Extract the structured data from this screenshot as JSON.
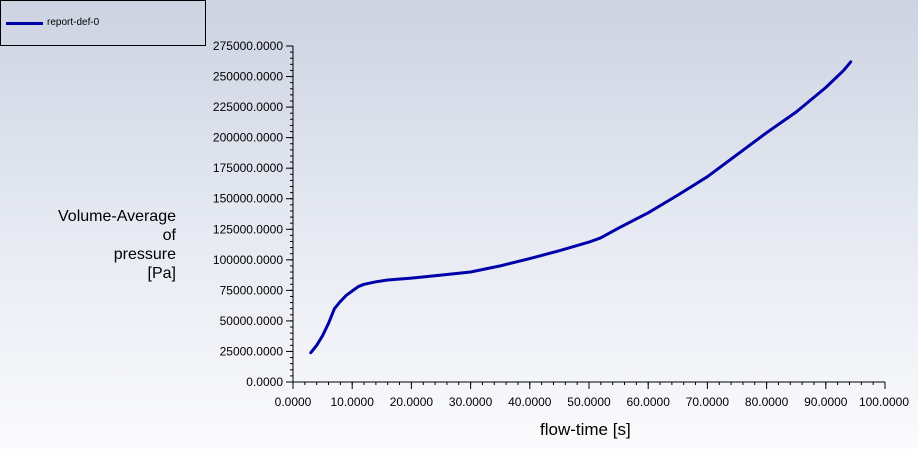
{
  "chart_data": {
    "type": "line",
    "xlabel": "flow-time [s]",
    "ylabel_lines": [
      "Volume-Average",
      "of",
      "pressure",
      "[Pa]"
    ],
    "xlim": [
      0,
      100
    ],
    "ylim": [
      0,
      275000
    ],
    "x_ticks": [
      0,
      10,
      20,
      30,
      40,
      50,
      60,
      70,
      80,
      90,
      100
    ],
    "x_tick_labels": [
      "0.0000",
      "10.0000",
      "20.0000",
      "30.0000",
      "40.0000",
      "50.0000",
      "60.0000",
      "70.0000",
      "80.0000",
      "90.0000",
      "100.0000"
    ],
    "y_ticks": [
      0,
      25000,
      50000,
      75000,
      100000,
      125000,
      150000,
      175000,
      200000,
      225000,
      250000,
      275000
    ],
    "y_tick_labels": [
      "0.0000",
      "25000.0000",
      "50000.0000",
      "75000.0000",
      "100000.0000",
      "125000.0000",
      "150000.0000",
      "175000.0000",
      "200000.0000",
      "225000.0000",
      "250000.0000",
      "275000.0000"
    ],
    "grid": false,
    "legend_position": "top-left",
    "series": [
      {
        "name": "report-def-0",
        "color": "#0000a8",
        "x": [
          3.0,
          4.0,
          5.0,
          6.0,
          7.0,
          8.0,
          9.0,
          10.0,
          11.0,
          12.0,
          14.0,
          16.0,
          20.0,
          25.0,
          30.0,
          35.0,
          40.0,
          45.0,
          50.0,
          52.0,
          55.0,
          60.0,
          65.0,
          70.0,
          75.0,
          80.0,
          85.0,
          90.0,
          93.0,
          94.2
        ],
        "y": [
          24000,
          30000,
          38000,
          48000,
          60000,
          66000,
          71000,
          74500,
          78000,
          80000,
          82000,
          83500,
          85000,
          87500,
          90000,
          95000,
          101000,
          107500,
          114500,
          118000,
          126000,
          138500,
          153000,
          168000,
          186000,
          204000,
          221000,
          241000,
          255000,
          262000
        ]
      }
    ]
  }
}
